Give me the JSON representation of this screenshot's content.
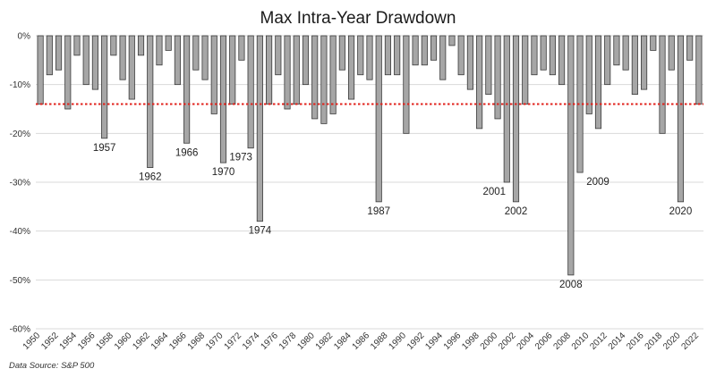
{
  "chart_data": {
    "type": "bar",
    "title": "Max Intra-Year Drawdown",
    "source": "Data Source: S&P 500",
    "ylim": [
      -60,
      0
    ],
    "yticks": [
      0,
      -10,
      -20,
      -30,
      -40,
      -50,
      -60
    ],
    "ytick_labels": [
      "0%",
      "-10%",
      "-20%",
      "-30%",
      "-40%",
      "-50%",
      "-60%"
    ],
    "grid": true,
    "categories": [
      1950,
      1951,
      1952,
      1953,
      1954,
      1955,
      1956,
      1957,
      1958,
      1959,
      1960,
      1961,
      1962,
      1963,
      1964,
      1965,
      1966,
      1967,
      1968,
      1969,
      1970,
      1971,
      1972,
      1973,
      1974,
      1975,
      1976,
      1977,
      1978,
      1979,
      1980,
      1981,
      1982,
      1983,
      1984,
      1985,
      1986,
      1987,
      1988,
      1989,
      1990,
      1991,
      1992,
      1993,
      1994,
      1995,
      1996,
      1997,
      1998,
      1999,
      2000,
      2001,
      2002,
      2003,
      2004,
      2005,
      2006,
      2007,
      2008,
      2009,
      2010,
      2011,
      2012,
      2013,
      2014,
      2015,
      2016,
      2017,
      2018,
      2019,
      2020,
      2021,
      2022
    ],
    "xtick_labels": [
      "1950",
      "1952",
      "1954",
      "1956",
      "1958",
      "1960",
      "1962",
      "1964",
      "1966",
      "1968",
      "1970",
      "1972",
      "1974",
      "1976",
      "1978",
      "1980",
      "1982",
      "1984",
      "1986",
      "1988",
      "1990",
      "1992",
      "1994",
      "1996",
      "1998",
      "2000",
      "2002",
      "2004",
      "2006",
      "2008",
      "2010",
      "2012",
      "2014",
      "2016",
      "2018",
      "2020",
      "2022"
    ],
    "values": [
      -14,
      -8,
      -7,
      -15,
      -4,
      -10,
      -11,
      -21,
      -4,
      -9,
      -13,
      -4,
      -27,
      -6,
      -3,
      -10,
      -22,
      -7,
      -9,
      -16,
      -26,
      -14,
      -5,
      -23,
      -38,
      -14,
      -8,
      -15,
      -14,
      -10,
      -17,
      -18,
      -16,
      -7,
      -13,
      -8,
      -9,
      -34,
      -8,
      -8,
      -20,
      -6,
      -6,
      -5,
      -9,
      -2,
      -8,
      -11,
      -19,
      -12,
      -17,
      -30,
      -34,
      -14,
      -8,
      -7,
      -8,
      -10,
      -49,
      -28,
      -16,
      -19,
      -10,
      -6,
      -7,
      -12,
      -11,
      -3,
      -20,
      -7,
      -34,
      -5,
      -14
    ],
    "average_line": -14,
    "annotations": [
      {
        "year": 1957,
        "label": "1957"
      },
      {
        "year": 1962,
        "label": "1962"
      },
      {
        "year": 1966,
        "label": "1966"
      },
      {
        "year": 1970,
        "label": "1970"
      },
      {
        "year": 1973,
        "label": "1973"
      },
      {
        "year": 1974,
        "label": "1974"
      },
      {
        "year": 1987,
        "label": "1987"
      },
      {
        "year": 2001,
        "label": "2001"
      },
      {
        "year": 2002,
        "label": "2002"
      },
      {
        "year": 2008,
        "label": "2008"
      },
      {
        "year": 2009,
        "label": "2009"
      },
      {
        "year": 2020,
        "label": "2020"
      }
    ],
    "colors": {
      "bar_fill": "#a6a6a6",
      "bar_stroke": "#3a3a3a",
      "grid": "#d9d9d9",
      "average_line": "#e0211b"
    }
  }
}
